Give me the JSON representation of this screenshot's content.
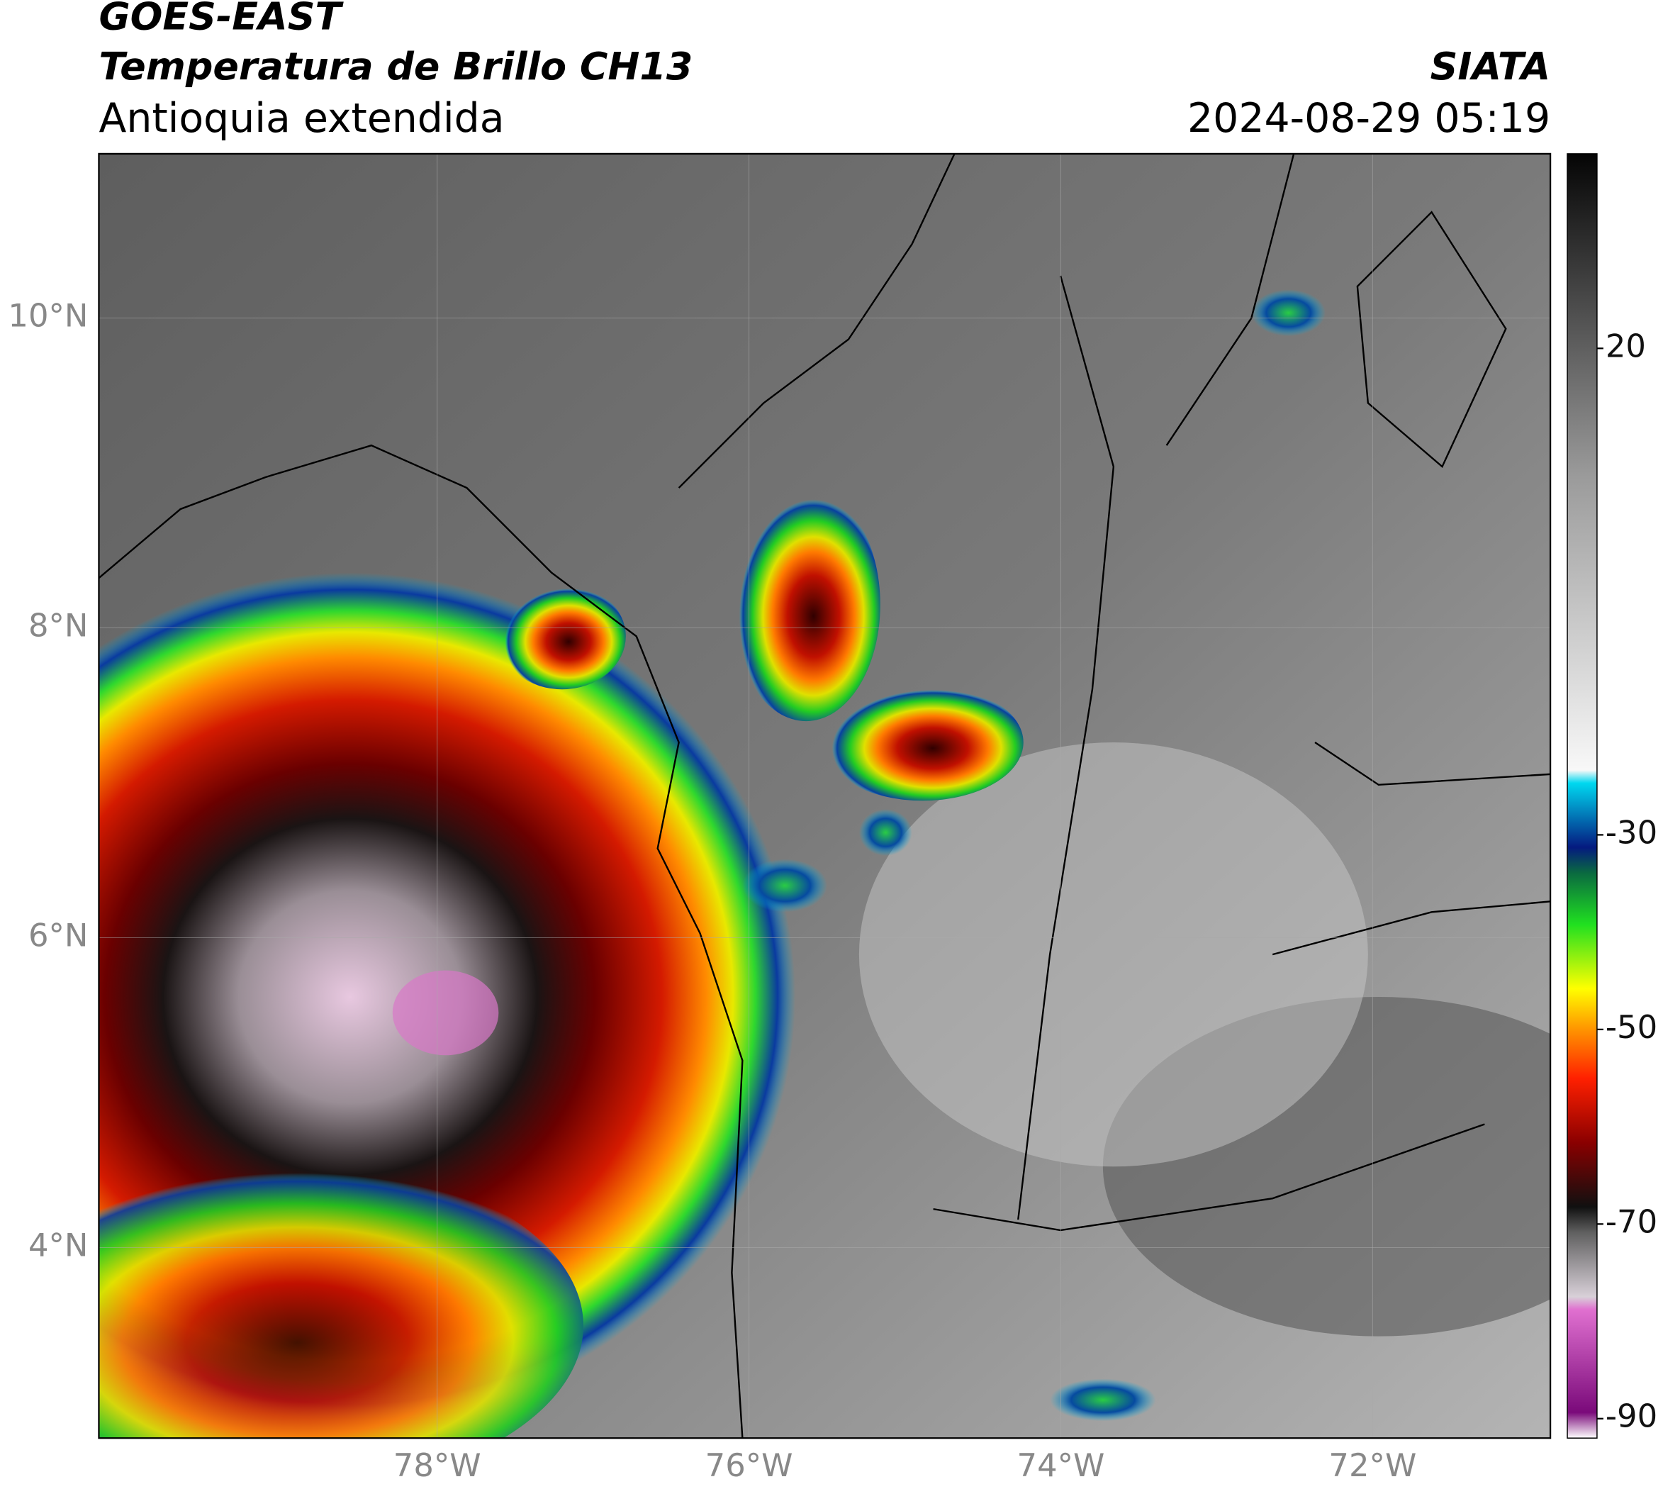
{
  "header": {
    "title_line1": "GOES-EAST",
    "title_line2": "Temperatura de Brillo CH13",
    "subtitle": "Antioquia extendida",
    "source": "SIATA",
    "datetime": "2024-08-29 05:19"
  },
  "map": {
    "lonlim": [
      -80.17,
      -70.86
    ],
    "latlim": [
      2.77,
      11.06
    ],
    "lon_ticks": [
      {
        "value": -78,
        "label": "78°W"
      },
      {
        "value": -76,
        "label": "76°W"
      },
      {
        "value": -74,
        "label": "74°W"
      },
      {
        "value": -72,
        "label": "72°W"
      }
    ],
    "lat_ticks": [
      {
        "value": 10,
        "label": "10°N"
      },
      {
        "value": 8,
        "label": "8°N"
      },
      {
        "value": 6,
        "label": "6°N"
      },
      {
        "value": 4,
        "label": "4°N"
      }
    ]
  },
  "colorbar": {
    "lim": [
      -92,
      40
    ],
    "ticks": [
      20,
      -30,
      -50,
      -70,
      -90
    ]
  }
}
